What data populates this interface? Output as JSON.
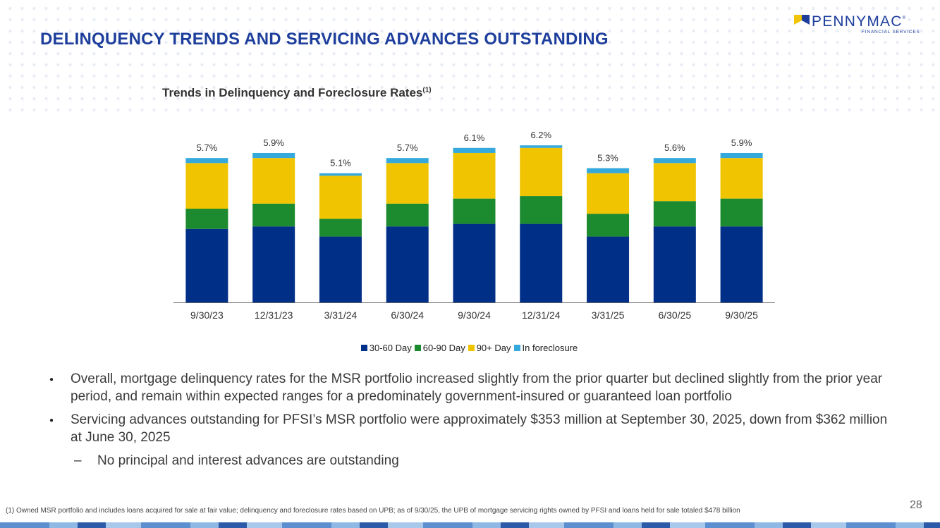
{
  "header": {
    "title": "DELINQUENCY TRENDS AND SERVICING ADVANCES OUTSTANDING",
    "logo_name": "PENNYMAC",
    "logo_sub": "FINANCIAL SERVICES",
    "logo_mark": "®"
  },
  "chart_title": "Trends in Delinquency and Foreclosure Rates",
  "chart_title_sup": "(1)",
  "chart_data": {
    "type": "bar",
    "stacked": true,
    "title": "Trends in Delinquency and Foreclosure Rates(1)",
    "categories": [
      "9/30/23",
      "12/31/23",
      "3/31/24",
      "6/30/24",
      "9/30/24",
      "12/31/24",
      "3/31/25",
      "6/30/25",
      "9/30/25"
    ],
    "series": [
      {
        "name": "30-60 Day",
        "color": "#002f87",
        "values": [
          2.9,
          3.0,
          2.6,
          3.0,
          3.1,
          3.1,
          2.6,
          3.0,
          3.0
        ]
      },
      {
        "name": "60-90 Day",
        "color": "#1c8a2e",
        "values": [
          0.8,
          0.9,
          0.7,
          0.9,
          1.0,
          1.1,
          0.9,
          1.0,
          1.1
        ]
      },
      {
        "name": "90+ Day",
        "color": "#f0c400",
        "values": [
          1.8,
          1.8,
          1.7,
          1.6,
          1.8,
          1.9,
          1.6,
          1.5,
          1.6
        ]
      },
      {
        "name": "In foreclosure",
        "color": "#35a9dc",
        "values": [
          0.2,
          0.2,
          0.1,
          0.2,
          0.2,
          0.1,
          0.2,
          0.2,
          0.2
        ]
      }
    ],
    "totals": [
      "5.7%",
      "5.9%",
      "5.1%",
      "5.7%",
      "6.1%",
      "6.2%",
      "5.3%",
      "5.6%",
      "5.9%"
    ],
    "ylim": [
      0,
      6.4
    ],
    "grid": false,
    "legend_position": "bottom"
  },
  "bullets": [
    "Overall, mortgage delinquency rates for the MSR portfolio increased slightly from the prior quarter but declined slightly from the prior year period, and remain within expected ranges for a predominately government-insured or guaranteed loan portfolio",
    "Servicing advances outstanding for PFSI’s MSR portfolio were approximately $353 million at September 30, 2025, down from $362 million at June 30, 2025"
  ],
  "sub_bullet": "No principal and interest advances are outstanding",
  "sub_bullet_dash": "–",
  "footnote": "(1) Owned MSR portfolio and includes loans acquired for sale at fair value; delinquency and foreclosure rates based on UPB; as of 9/30/25, the UPB of mortgage servicing rights owned by PFSI and loans held for sale totaled $478 billion",
  "page_number": "28"
}
